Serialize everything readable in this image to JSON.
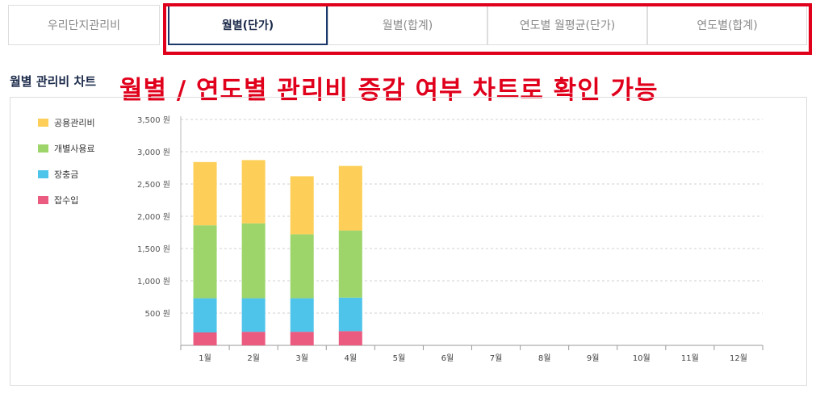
{
  "tabs": [
    {
      "label": "우리단지관리비",
      "active": false
    },
    {
      "label": "월별(단가)",
      "active": true
    },
    {
      "label": "월별(합계)",
      "active": false
    },
    {
      "label": "연도별 월평균(단가)",
      "active": false
    },
    {
      "label": "연도별(합계)",
      "active": false
    }
  ],
  "section_title": "월별 관리비 차트",
  "annotation": "월별 / 연도별 관리비 증감 여부 차트로 확인 가능",
  "colors": {
    "common": "#fdcf58",
    "individual": "#9dd56a",
    "reserve": "#4ec4ea",
    "misc": "#eb5a7f",
    "accent": "#e0001b",
    "active_tab_border": "#1b3a6b"
  },
  "chart_data": {
    "type": "bar",
    "stacked": true,
    "categories": [
      "1월",
      "2월",
      "3월",
      "4월",
      "5월",
      "6월",
      "7월",
      "8월",
      "9월",
      "10월",
      "11월",
      "12월"
    ],
    "series": [
      {
        "name": "잡수입",
        "values": [
          200,
          210,
          210,
          220,
          null,
          null,
          null,
          null,
          null,
          null,
          null,
          null
        ]
      },
      {
        "name": "장충금",
        "values": [
          530,
          520,
          520,
          520,
          null,
          null,
          null,
          null,
          null,
          null,
          null,
          null
        ]
      },
      {
        "name": "개별사용료",
        "values": [
          1130,
          1160,
          990,
          1040,
          null,
          null,
          null,
          null,
          null,
          null,
          null,
          null
        ]
      },
      {
        "name": "공용관리비",
        "values": [
          980,
          980,
          900,
          1000,
          null,
          null,
          null,
          null,
          null,
          null,
          null,
          null
        ]
      }
    ],
    "legend": [
      "공용관리비",
      "개별사용료",
      "장충금",
      "잡수입"
    ],
    "legend_position": "top-left",
    "yticks": [
      "500 원",
      "1,000 원",
      "1,500 원",
      "2,000 원",
      "2,500 원",
      "3,000 원",
      "3,500 원"
    ],
    "ylim": [
      0,
      3500
    ],
    "grid": true
  }
}
